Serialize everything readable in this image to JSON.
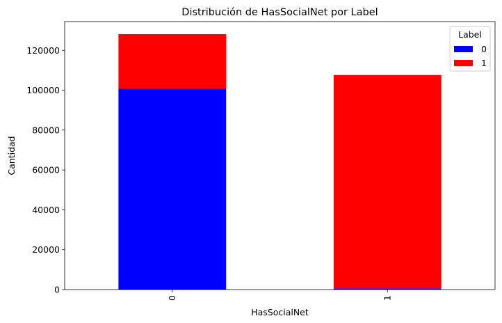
{
  "chart_data": {
    "type": "bar",
    "stacked": true,
    "title": "Distribución de HasSocialNet por Label",
    "xlabel": "HasSocialNet",
    "ylabel": "Cantidad",
    "categories": [
      "0",
      "1"
    ],
    "series": [
      {
        "name": "0",
        "color": "#0000ff",
        "values": [
          100700,
          600
        ]
      },
      {
        "name": "1",
        "color": "#ff0000",
        "values": [
          27400,
          107000
        ]
      }
    ],
    "ylim": [
      0,
      134400
    ],
    "yticks": [
      0,
      20000,
      40000,
      60000,
      80000,
      100000,
      120000
    ],
    "legend": {
      "title": "Label",
      "placement": "top-right"
    },
    "grid": false
  }
}
